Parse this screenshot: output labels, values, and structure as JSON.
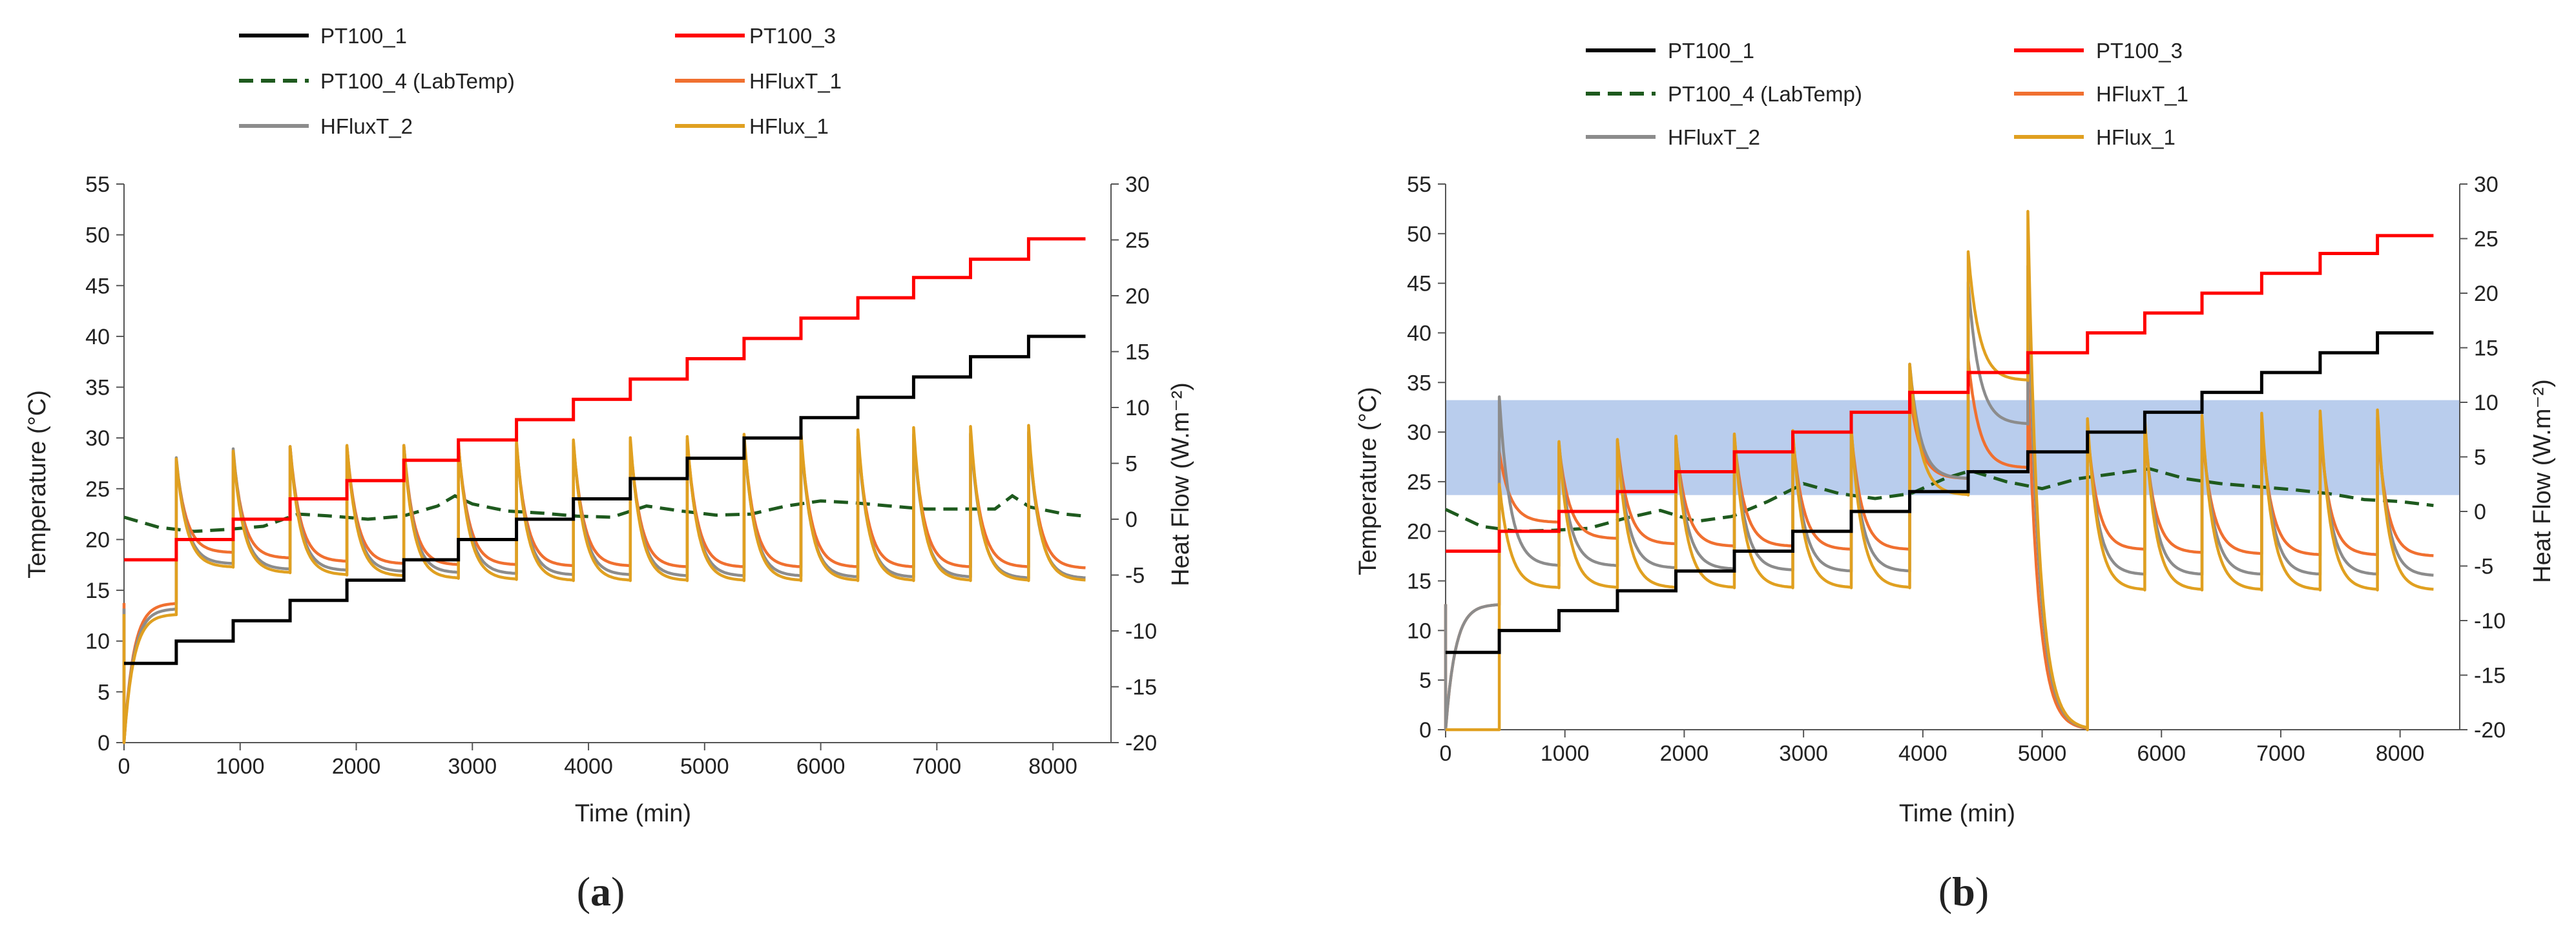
{
  "charts": [
    {
      "id": "a",
      "caption_open": "(",
      "caption_letter": "a",
      "caption_close": ")",
      "xlabel": "Time (min)",
      "ylabel": "Temperature (°C)",
      "y2label": "Heat Flow (W.m⁻²)",
      "xticks": [
        "0",
        "1000",
        "2000",
        "3000",
        "4000",
        "5000",
        "6000",
        "7000",
        "8000"
      ],
      "yticks": [
        "0",
        "5",
        "10",
        "15",
        "20",
        "25",
        "30",
        "35",
        "40",
        "45",
        "50",
        "55"
      ],
      "y2ticks": [
        "-20",
        "-15",
        "-10",
        "-5",
        "0",
        "5",
        "10",
        "15",
        "20",
        "25",
        "30"
      ],
      "legend": [
        "PT100_1",
        "PT100_3",
        "PT100_4 (LabTemp)",
        "HFluxT_1",
        "HFluxT_2",
        "HFlux_1"
      ]
    },
    {
      "id": "b",
      "caption_open": "(",
      "caption_letter": "b",
      "caption_close": ")",
      "xlabel": "Time (min)",
      "ylabel": "Temperature (°C)",
      "y2label": "Heat Flow (W.m⁻²)",
      "xticks": [
        "0",
        "1000",
        "2000",
        "3000",
        "4000",
        "5000",
        "6000",
        "7000",
        "8000"
      ],
      "yticks": [
        "0",
        "5",
        "10",
        "15",
        "20",
        "25",
        "30",
        "35",
        "40",
        "45",
        "50",
        "55"
      ],
      "y2ticks": [
        "-20",
        "-15",
        "-10",
        "-5",
        "0",
        "5",
        "10",
        "15",
        "20",
        "25",
        "30"
      ],
      "legend": [
        "PT100_1",
        "PT100_3",
        "PT100_4 (LabTemp)",
        "HFluxT_1",
        "HFluxT_2",
        "HFlux_1"
      ]
    }
  ],
  "chart_data": [
    {
      "type": "line",
      "xlim": [
        0,
        8500
      ],
      "ylim": [
        0,
        55
      ],
      "y2lim": [
        -20,
        30
      ],
      "grid": false,
      "legend_position": "top",
      "colors": {
        "PT100_1": "#000000",
        "PT100_3": "#ff0000",
        "PT100_4 (LabTemp)": "#1e5a1e",
        "HFluxT_1": "#f07030",
        "HFluxT_2": "#8c8c8c",
        "HFlux_1": "#e0a020"
      },
      "step_times": [
        0,
        450,
        940,
        1430,
        1920,
        2410,
        2880,
        3380,
        3870,
        4360,
        4850,
        5340,
        5830,
        6320,
        6800,
        7290,
        7790
      ],
      "series": [
        {
          "name": "PT100_1",
          "axis": "left",
          "step_levels": [
            7.8,
            10,
            12,
            14,
            16,
            18,
            20,
            22,
            24,
            26,
            28,
            30,
            32,
            34,
            36,
            38,
            40
          ],
          "x_end": 8280
        },
        {
          "name": "PT100_3",
          "axis": "left",
          "step_levels": [
            18,
            20,
            22,
            24,
            25.8,
            27.8,
            29.8,
            31.8,
            33.8,
            35.8,
            37.8,
            39.8,
            41.8,
            43.8,
            45.8,
            47.6,
            49.6
          ],
          "x_end": 8280
        },
        {
          "name": "PT100_4 (LabTemp)",
          "axis": "left",
          "x": [
            0,
            300,
            600,
            900,
            1200,
            1500,
            1800,
            2100,
            2400,
            2700,
            2850,
            3000,
            3300,
            3600,
            3900,
            4200,
            4500,
            4800,
            5100,
            5400,
            5700,
            6000,
            6300,
            6600,
            6900,
            7200,
            7500,
            7650,
            7800,
            8100,
            8280
          ],
          "y": [
            22.2,
            21.2,
            20.8,
            21,
            21.3,
            22.5,
            22.3,
            22,
            22.3,
            23.3,
            24.3,
            23.5,
            22.8,
            22.6,
            22.3,
            22.2,
            23.3,
            22.8,
            22.4,
            22.5,
            23.3,
            23.8,
            23.6,
            23.3,
            23,
            23,
            23,
            24.3,
            23.2,
            22.5,
            22.3
          ]
        },
        {
          "name": "HFluxT_1",
          "axis": "right",
          "pulse_peak": [
            -20,
            5.2,
            6,
            6.5,
            6.5,
            6.6,
            6.6,
            6.7,
            6.8,
            6.9,
            7,
            7.2,
            7.3,
            7.4,
            7.5,
            7.6,
            7.7
          ],
          "pulse_base": [
            -7.5,
            -3,
            -3.5,
            -3.8,
            -4,
            -4.1,
            -4.1,
            -4.2,
            -4.2,
            -4.3,
            -4.3,
            -4.3,
            -4.3,
            -4.3,
            -4.3,
            -4.3,
            -4.4
          ]
        },
        {
          "name": "HFluxT_2",
          "axis": "right",
          "pulse_peak": [
            -20,
            5.5,
            6.3,
            6.5,
            6.5,
            6.6,
            6.7,
            6.8,
            6.9,
            7,
            7.1,
            7.2,
            7.3,
            7.4,
            7.6,
            7.7,
            7.8
          ],
          "pulse_base": [
            -8,
            -4,
            -4.5,
            -4.6,
            -4.7,
            -4.8,
            -4.9,
            -5,
            -5,
            -5.1,
            -5.1,
            -5.1,
            -5.2,
            -5.2,
            -5.2,
            -5.3,
            -5.3
          ]
        },
        {
          "name": "HFlux_1",
          "axis": "right",
          "pulse_peak": [
            -20,
            5.4,
            6.1,
            6.5,
            6.6,
            6.6,
            6.8,
            7,
            7.1,
            7.3,
            7.4,
            7.6,
            7.8,
            8,
            8.2,
            8.3,
            8.4
          ],
          "pulse_base": [
            -8.5,
            -4.3,
            -4.8,
            -5,
            -5.1,
            -5.3,
            -5.4,
            -5.5,
            -5.5,
            -5.5,
            -5.5,
            -5.5,
            -5.5,
            -5.5,
            -5.5,
            -5.5,
            -5.5
          ]
        }
      ]
    },
    {
      "type": "line",
      "xlim": [
        0,
        8500
      ],
      "ylim": [
        0,
        55
      ],
      "y2lim": [
        -20,
        30
      ],
      "grid": false,
      "legend_position": "top",
      "highlight_band": {
        "axis": "right",
        "from": 1.5,
        "to": 10.2,
        "color": "#a7c0e8"
      },
      "colors": {
        "PT100_1": "#000000",
        "PT100_3": "#ff0000",
        "PT100_4 (LabTemp)": "#1e5a1e",
        "HFluxT_1": "#f07030",
        "HFluxT_2": "#8c8c8c",
        "HFlux_1": "#e0a020"
      },
      "step_times": [
        0,
        450,
        950,
        1440,
        1930,
        2420,
        2910,
        3400,
        3890,
        4380,
        4880,
        5380,
        5860,
        6340,
        6840,
        7330,
        7810
      ],
      "series": [
        {
          "name": "PT100_1",
          "axis": "left",
          "step_levels": [
            7.8,
            10,
            12,
            14,
            16,
            18,
            20,
            22,
            24,
            26,
            28,
            30,
            32,
            34,
            36,
            38,
            40
          ],
          "x_end": 8280
        },
        {
          "name": "PT100_3",
          "axis": "left",
          "step_levels": [
            18,
            20,
            22,
            24,
            26,
            28,
            30,
            32,
            34,
            36,
            38,
            40,
            42,
            44,
            46,
            48,
            49.8
          ],
          "x_end": 8280
        },
        {
          "name": "PT100_4 (LabTemp)",
          "axis": "left",
          "x": [
            0,
            300,
            600,
            900,
            1200,
            1500,
            1800,
            2100,
            2400,
            2700,
            3000,
            3300,
            3600,
            3900,
            4200,
            4400,
            4700,
            5000,
            5300,
            5600,
            5900,
            6200,
            6500,
            6800,
            7100,
            7400,
            7700,
            8000,
            8280
          ],
          "y": [
            22.2,
            20.5,
            20,
            20.1,
            20.3,
            21.3,
            22.1,
            21,
            21.5,
            23,
            24.8,
            23.8,
            23.3,
            23.8,
            25.4,
            26.1,
            25,
            24.3,
            25.3,
            25.8,
            26.3,
            25.3,
            24.8,
            24.5,
            24.2,
            23.8,
            23.2,
            23,
            22.6
          ]
        },
        {
          "name": "HFluxT_1",
          "axis": "right",
          "pulse_peak": [
            -20,
            5.5,
            6,
            6.5,
            6.5,
            6.7,
            6.9,
            7.3,
            11,
            14,
            12.5,
            7.5,
            7.2,
            7.3,
            7.4,
            7.5,
            7.6
          ],
          "pulse_base": [
            -8.5,
            -1,
            -2.5,
            -3,
            -3.2,
            -3.2,
            -3.5,
            -3.5,
            3,
            4,
            -20,
            -3.5,
            -3.8,
            -3.9,
            -4,
            -4,
            -4.1
          ]
        },
        {
          "name": "HFluxT_2",
          "axis": "right",
          "pulse_peak": [
            -20,
            10.5,
            6.3,
            6.5,
            6.8,
            7,
            7.2,
            7.5,
            13.5,
            21,
            22.5,
            8,
            8.2,
            8.3,
            8.4,
            8.5,
            8.6
          ],
          "pulse_base": [
            -8.5,
            -5,
            -5,
            -5.2,
            -5.3,
            -5.4,
            -5.5,
            -5.5,
            3,
            8,
            -20,
            -5.8,
            -5.8,
            -5.8,
            -5.8,
            -5.8,
            -5.9
          ]
        },
        {
          "name": "HFlux_1",
          "axis": "right",
          "pulse_peak": [
            -20,
            2.5,
            6.4,
            6.6,
            6.9,
            7.1,
            7.4,
            7.7,
            13.5,
            23.8,
            27.5,
            8.5,
            8.6,
            8.8,
            9,
            9.2,
            9.3
          ],
          "pulse_base": [
            -20,
            -7,
            -7,
            -7,
            -7,
            -7,
            -7,
            -7,
            1.5,
            12,
            -20,
            -7.2,
            -7.2,
            -7.2,
            -7.2,
            -7.2,
            -7.2
          ]
        }
      ]
    }
  ]
}
